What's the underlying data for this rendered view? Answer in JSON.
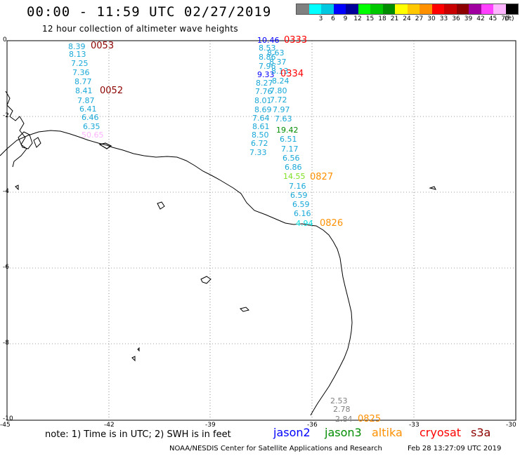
{
  "header": {
    "title": "00:00 - 11:59 UTC 02/27/2019",
    "subtitle": "12 hour collection of altimeter wave heights"
  },
  "colorbar": {
    "unit_label": "(ft)",
    "items": [
      {
        "label": "",
        "color": "#808080"
      },
      {
        "label": "3",
        "color": "#00ffff"
      },
      {
        "label": "6",
        "color": "#00c8e0"
      },
      {
        "label": "9",
        "color": "#0000ff"
      },
      {
        "label": "12",
        "color": "#00009a"
      },
      {
        "label": "15",
        "color": "#00ff00"
      },
      {
        "label": "18",
        "color": "#00c800"
      },
      {
        "label": "21",
        "color": "#008c00"
      },
      {
        "label": "24",
        "color": "#ffff00"
      },
      {
        "label": "27",
        "color": "#ffc800"
      },
      {
        "label": "30",
        "color": "#ff9000"
      },
      {
        "label": "33",
        "color": "#ff0000"
      },
      {
        "label": "36",
        "color": "#c80000"
      },
      {
        "label": "39",
        "color": "#8c0000"
      },
      {
        "label": "42",
        "color": "#a000a0"
      },
      {
        "label": "45",
        "color": "#ff40ff"
      },
      {
        "label": "70",
        "color": "#ffb4ff"
      },
      {
        "label": "",
        "color": "#000000"
      }
    ]
  },
  "axes": {
    "x_ticks": [
      "-45",
      "-42",
      "-39",
      "-36",
      "-33",
      "-30"
    ],
    "y_ticks": [
      "0",
      "-2",
      "-4",
      "-6",
      "-8",
      "-10"
    ]
  },
  "times": [
    {
      "text": "0053",
      "color": "#8c0000"
    },
    {
      "text": "0052",
      "color": "#8c0000"
    },
    {
      "text": "0333",
      "color": "#ff0000"
    },
    {
      "text": "0334",
      "color": "#ff0000"
    },
    {
      "text": "0827",
      "color": "#ff9000"
    },
    {
      "text": "0826",
      "color": "#ff9000"
    },
    {
      "text": "0825",
      "color": "#ff9000"
    }
  ],
  "track_west": [
    {
      "v": "8.39",
      "c": "#18a8d8"
    },
    {
      "v": "8.13",
      "c": "#18a8d8"
    },
    {
      "v": "7.25",
      "c": "#18a8d8"
    },
    {
      "v": "7.36",
      "c": "#18a8d8"
    },
    {
      "v": "8.77",
      "c": "#18a8d8"
    },
    {
      "v": "8.41",
      "c": "#18a8d8"
    },
    {
      "v": "7.87",
      "c": "#18a8d8"
    },
    {
      "v": "6.41",
      "c": "#18a8d8"
    },
    {
      "v": "6.46",
      "c": "#18a8d8"
    },
    {
      "v": "6.35",
      "c": "#18a8d8"
    },
    {
      "v": "50.65",
      "c": "#ffb4ff"
    }
  ],
  "track_mid_a": [
    {
      "v": "10.46",
      "c": "#0000ff"
    },
    {
      "v": "8.53",
      "c": "#18a8d8"
    },
    {
      "v": "8.86",
      "c": "#18a8d8"
    },
    {
      "v": "7.96",
      "c": "#18a8d8"
    },
    {
      "v": "9.33",
      "c": "#0000ff"
    },
    {
      "v": "8.27",
      "c": "#18a8d8"
    },
    {
      "v": "7.76",
      "c": "#18a8d8"
    },
    {
      "v": "8.01",
      "c": "#18a8d8"
    },
    {
      "v": "8.69",
      "c": "#18a8d8"
    },
    {
      "v": "7.64",
      "c": "#18a8d8"
    },
    {
      "v": "8.61",
      "c": "#18a8d8"
    },
    {
      "v": "8.50",
      "c": "#18a8d8"
    },
    {
      "v": "6.72",
      "c": "#18a8d8"
    },
    {
      "v": "7.33",
      "c": "#18a8d8"
    }
  ],
  "track_mid_b": [
    {
      "v": "8.63",
      "c": "#18a8d8"
    },
    {
      "v": "8.37",
      "c": "#18a8d8"
    },
    {
      "v": "8.13",
      "c": "#18a8d8"
    },
    {
      "v": "8.24",
      "c": "#18a8d8"
    },
    {
      "v": "7.80",
      "c": "#18a8d8"
    },
    {
      "v": "7.72",
      "c": "#18a8d8"
    },
    {
      "v": "7.97",
      "c": "#18a8d8"
    },
    {
      "v": "7.63",
      "c": "#18a8d8"
    },
    {
      "v": "19.42",
      "c": "#008c00"
    },
    {
      "v": "6.51",
      "c": "#18a8d8"
    },
    {
      "v": "7.17",
      "c": "#18a8d8"
    },
    {
      "v": "6.56",
      "c": "#18a8d8"
    },
    {
      "v": "6.86",
      "c": "#18a8d8"
    },
    {
      "v": "14.55",
      "c": "#7fe020"
    },
    {
      "v": "7.16",
      "c": "#18a8d8"
    },
    {
      "v": "6.59",
      "c": "#18a8d8"
    },
    {
      "v": "6.59",
      "c": "#18a8d8"
    },
    {
      "v": "6.16",
      "c": "#18a8d8"
    },
    {
      "v": "4.94",
      "c": "#00e0e0"
    }
  ],
  "track_south": [
    {
      "v": "2.53",
      "c": "#808080"
    },
    {
      "v": "2.78",
      "c": "#808080"
    },
    {
      "v": "2.84",
      "c": "#808080"
    }
  ],
  "footer": {
    "note": "note:  1) Time is in UTC;  2) SWH is in feet",
    "legend": [
      {
        "text": "jason2",
        "color": "#0000ff"
      },
      {
        "text": "jason3",
        "color": "#008c00"
      },
      {
        "text": "altika",
        "color": "#ff9000"
      },
      {
        "text": "cryosat",
        "color": "#ff0000"
      },
      {
        "text": "s3a",
        "color": "#8c0000"
      }
    ],
    "credit": "NOAA/NESDIS Center for Satellite Applications and Research",
    "timestamp": "Feb 28 13:27:09 UTC 2019"
  }
}
